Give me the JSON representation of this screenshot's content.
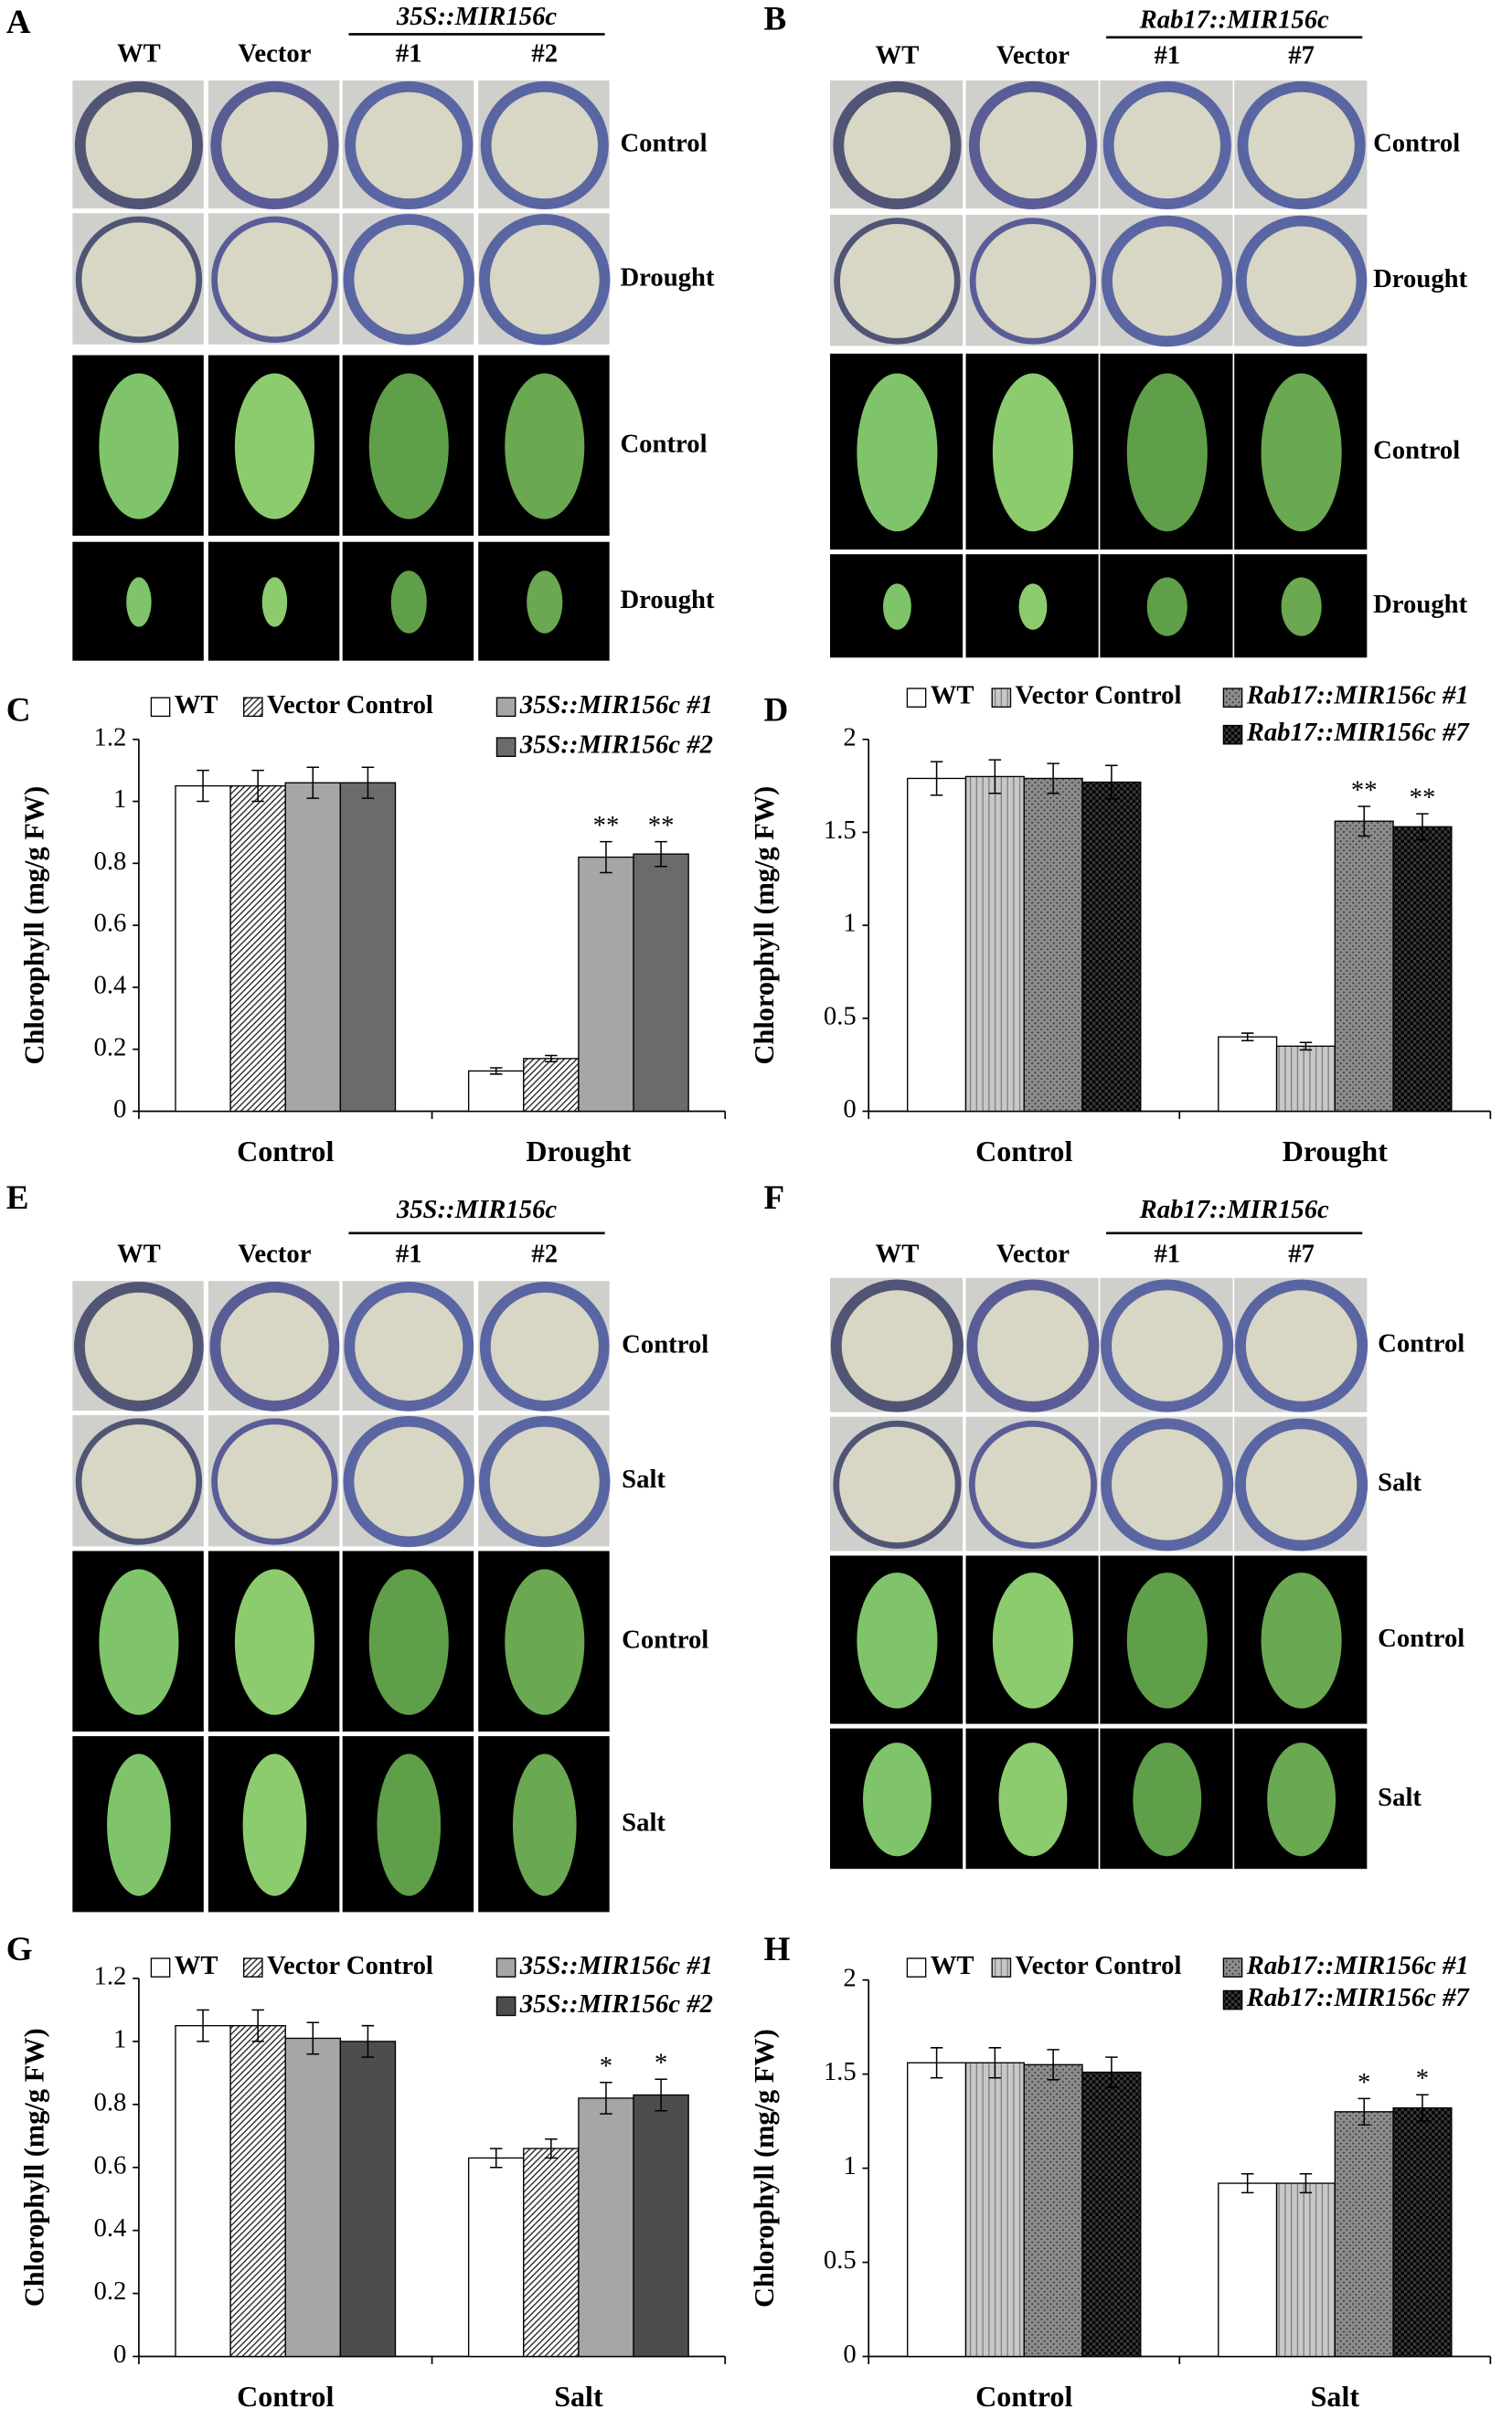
{
  "photo_panels": [
    {
      "label": "A",
      "columns": [
        "WT",
        "Vector",
        "#1",
        "#2"
      ],
      "group": "35S::MIR156c",
      "rows": [
        "Control",
        "Drought",
        "Control",
        "Drought"
      ]
    },
    {
      "label": "B",
      "columns": [
        "WT",
        "Vector",
        "#1",
        "#7"
      ],
      "group": "Rab17::MIR156c",
      "rows": [
        "Control",
        "Drought",
        "Control",
        "Drought"
      ]
    },
    {
      "label": "E",
      "columns": [
        "WT",
        "Vector",
        "#1",
        "#2"
      ],
      "group": "35S::MIR156c",
      "rows": [
        "Control",
        "Salt",
        "Control",
        "Salt"
      ]
    },
    {
      "label": "F",
      "columns": [
        "WT",
        "Vector",
        "#1",
        "#7"
      ],
      "group": "Rab17::MIR156c",
      "rows": [
        "Control",
        "Salt",
        "Control",
        "Salt"
      ]
    }
  ],
  "chart_data": [
    {
      "type": "bar",
      "panel_label": "C",
      "y_label": "Chlorophyll (mg/g FW)",
      "categories": [
        "Control",
        "Drought"
      ],
      "ylim": [
        0,
        1.2
      ],
      "yticks": [
        0,
        0.2,
        0.4,
        0.6,
        0.8,
        1,
        1.2
      ],
      "series": [
        {
          "name": "WT",
          "color": "#ffffff",
          "values": [
            1.05,
            0.13
          ],
          "errors": [
            0.05,
            0.01
          ],
          "significance": [
            null,
            null
          ]
        },
        {
          "name": "Vector Control",
          "color": "#ffffff",
          "pattern": "diagonal",
          "values": [
            1.05,
            0.17
          ],
          "errors": [
            0.05,
            0.01
          ],
          "significance": [
            null,
            null
          ]
        },
        {
          "name": "35S::MIR156c #1",
          "color": "#a6a6a6",
          "italic": true,
          "values": [
            1.06,
            0.82
          ],
          "errors": [
            0.05,
            0.05
          ],
          "significance": [
            null,
            "**"
          ]
        },
        {
          "name": "35S::MIR156c #2",
          "color": "#6b6b6b",
          "italic": true,
          "values": [
            1.06,
            0.83
          ],
          "errors": [
            0.05,
            0.04
          ],
          "significance": [
            null,
            "**"
          ]
        }
      ]
    },
    {
      "type": "bar",
      "panel_label": "D",
      "y_label": "Chlorophyll (mg/g FW)",
      "categories": [
        "Control",
        "Drought"
      ],
      "ylim": [
        0,
        2
      ],
      "yticks": [
        0,
        0.5,
        1,
        1.5,
        2
      ],
      "series": [
        {
          "name": "WT",
          "color": "#ffffff",
          "values": [
            1.79,
            0.4
          ],
          "errors": [
            0.09,
            0.02
          ],
          "significance": [
            null,
            null
          ]
        },
        {
          "name": "Vector Control",
          "color": "#c8c8c8",
          "pattern": "vertical",
          "values": [
            1.8,
            0.35
          ],
          "errors": [
            0.09,
            0.02
          ],
          "significance": [
            null,
            null
          ]
        },
        {
          "name": "Rab17::MIR156c #1",
          "color": "#8c8c8c",
          "pattern": "dots",
          "italic": true,
          "values": [
            1.79,
            1.56
          ],
          "errors": [
            0.08,
            0.08
          ],
          "significance": [
            null,
            "**"
          ]
        },
        {
          "name": "Rab17::MIR156c #7",
          "color": "#3a3a3a",
          "pattern": "checker",
          "italic": true,
          "values": [
            1.77,
            1.53
          ],
          "errors": [
            0.09,
            0.07
          ],
          "significance": [
            null,
            "**"
          ]
        }
      ]
    },
    {
      "type": "bar",
      "panel_label": "G",
      "y_label": "Chlorophyll (mg/g FW)",
      "categories": [
        "Control",
        "Salt"
      ],
      "ylim": [
        0,
        1.2
      ],
      "yticks": [
        0,
        0.2,
        0.4,
        0.6,
        0.8,
        1,
        1.2
      ],
      "series": [
        {
          "name": "WT",
          "color": "#ffffff",
          "values": [
            1.05,
            0.63
          ],
          "errors": [
            0.05,
            0.03
          ],
          "significance": [
            null,
            null
          ]
        },
        {
          "name": "Vector Control",
          "color": "#ffffff",
          "pattern": "diagonal",
          "values": [
            1.05,
            0.66
          ],
          "errors": [
            0.05,
            0.03
          ],
          "significance": [
            null,
            null
          ]
        },
        {
          "name": "35S::MIR156c #1",
          "color": "#a6a6a6",
          "italic": true,
          "values": [
            1.01,
            0.82
          ],
          "errors": [
            0.05,
            0.05
          ],
          "significance": [
            null,
            "*"
          ]
        },
        {
          "name": "35S::MIR156c #2",
          "color": "#4d4d4d",
          "italic": true,
          "values": [
            1.0,
            0.83
          ],
          "errors": [
            0.05,
            0.05
          ],
          "significance": [
            null,
            "*"
          ]
        }
      ]
    },
    {
      "type": "bar",
      "panel_label": "H",
      "y_label": "Chlorophyll (mg/g FW)",
      "categories": [
        "Control",
        "Salt"
      ],
      "ylim": [
        0,
        2
      ],
      "yticks": [
        0,
        0.5,
        1,
        1.5,
        2
      ],
      "series": [
        {
          "name": "WT",
          "color": "#ffffff",
          "values": [
            1.56,
            0.92
          ],
          "errors": [
            0.08,
            0.05
          ],
          "significance": [
            null,
            null
          ]
        },
        {
          "name": "Vector Control",
          "color": "#c8c8c8",
          "pattern": "vertical",
          "values": [
            1.56,
            0.92
          ],
          "errors": [
            0.08,
            0.05
          ],
          "significance": [
            null,
            null
          ]
        },
        {
          "name": "Rab17::MIR156c #1",
          "color": "#8c8c8c",
          "pattern": "dots",
          "italic": true,
          "values": [
            1.55,
            1.3
          ],
          "errors": [
            0.08,
            0.07
          ],
          "significance": [
            null,
            "*"
          ]
        },
        {
          "name": "Rab17::MIR156c #7",
          "color": "#3a3a3a",
          "pattern": "checker",
          "italic": true,
          "values": [
            1.51,
            1.32
          ],
          "errors": [
            0.08,
            0.07
          ],
          "significance": [
            null,
            "*"
          ]
        }
      ]
    }
  ]
}
